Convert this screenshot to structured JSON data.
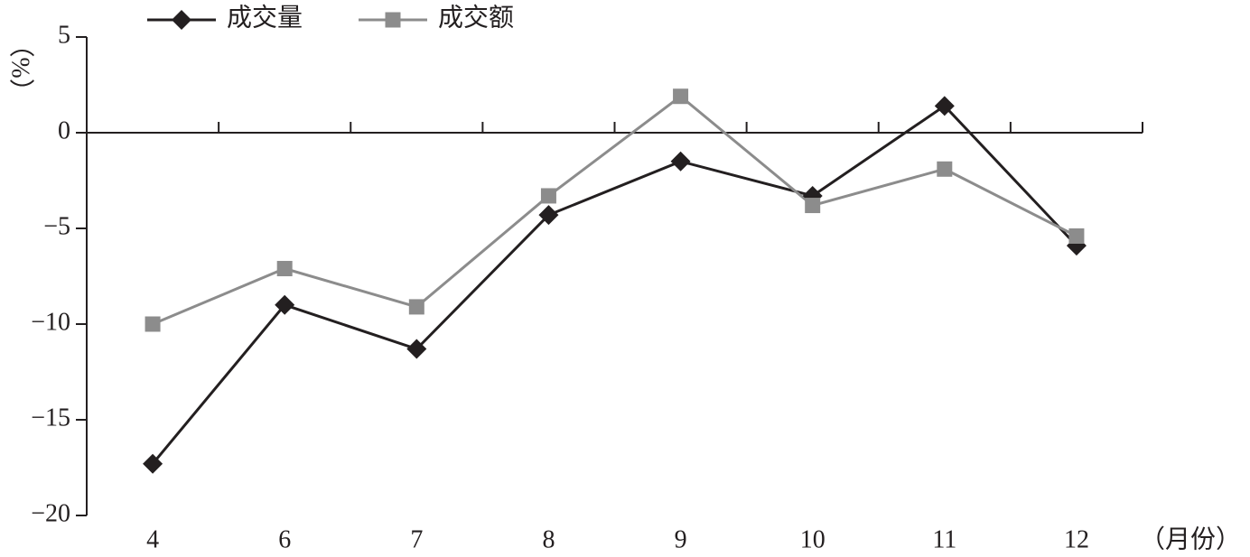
{
  "chart_data": {
    "type": "line",
    "y_label": "（%）",
    "x_label": "（月份）",
    "categories": [
      "4",
      "6",
      "7",
      "8",
      "9",
      "10",
      "11",
      "12"
    ],
    "series": [
      {
        "name": "成交量",
        "color": "#231f20",
        "marker": "diamond",
        "values": [
          -17.3,
          -9.0,
          -11.3,
          -4.3,
          -1.5,
          -3.3,
          1.4,
          -5.9
        ]
      },
      {
        "name": "成交额",
        "color": "#8c8c8c",
        "marker": "square",
        "values": [
          -10.0,
          -7.1,
          -9.1,
          -3.3,
          1.9,
          -3.8,
          -1.9,
          -5.4
        ]
      }
    ],
    "ylim": [
      -20,
      5
    ],
    "yticks": [
      {
        "value": -20,
        "label": "−20"
      },
      {
        "value": -15,
        "label": "−15"
      },
      {
        "value": -10,
        "label": "−10"
      },
      {
        "value": -5,
        "label": "−5"
      },
      0,
      5
    ],
    "grid": false,
    "legend": "top"
  }
}
